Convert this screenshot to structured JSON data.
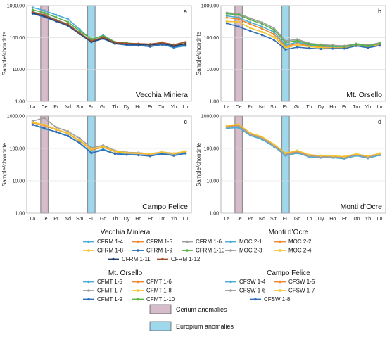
{
  "colors": {
    "cerium_band": "#d7bccb",
    "europium_band": "#9fd8ec",
    "band_stroke": "#333333",
    "grid": "#d9d9d9",
    "axis": "#888888"
  },
  "chart_data": [
    {
      "type": "line",
      "id": "a",
      "letter": "a",
      "title": "Vecchia Miniera",
      "ylabel": "Sample/chondrite",
      "ylim": [
        1,
        1000
      ],
      "yscale": "log",
      "ytick_labels": [
        "1000.00",
        "100.00",
        "10.00",
        "1.00"
      ],
      "categories": [
        "La",
        "Ce",
        "Pr",
        "Nd",
        "Sm",
        "Eu",
        "Gd",
        "Tb",
        "Dy",
        "Ho",
        "Er",
        "Tm",
        "Yb",
        "Lu"
      ],
      "bands": [
        {
          "label": "Cerium anomalies",
          "category": "Ce",
          "color": "#d7bccb"
        },
        {
          "label": "Europium anomalies",
          "category": "Eu",
          "color": "#9fd8ec"
        }
      ],
      "series": [
        {
          "name": "CFRM 1-4",
          "color": "#4bacd6",
          "values": [
            870,
            700,
            510,
            380,
            180,
            85,
            118,
            72,
            62,
            58,
            52,
            62,
            48,
            55
          ]
        },
        {
          "name": "CFRM 1-5",
          "color": "#f08a2e",
          "values": [
            600,
            480,
            340,
            250,
            135,
            75,
            98,
            68,
            64,
            62,
            60,
            66,
            56,
            64
          ]
        },
        {
          "name": "CFRM 1-6",
          "color": "#9e9e9e",
          "values": [
            640,
            520,
            360,
            265,
            140,
            78,
            104,
            70,
            66,
            63,
            61,
            68,
            58,
            66
          ]
        },
        {
          "name": "CFRM 1-8",
          "color": "#f4c430",
          "values": [
            610,
            495,
            345,
            255,
            137,
            76,
            100,
            69,
            64,
            62,
            60,
            67,
            57,
            65
          ]
        },
        {
          "name": "CFRM 1-9",
          "color": "#2f6fb8",
          "values": [
            560,
            440,
            320,
            232,
            128,
            72,
            92,
            64,
            58,
            56,
            52,
            60,
            50,
            58
          ]
        },
        {
          "name": "CFRM 1-10",
          "color": "#5ab345",
          "values": [
            740,
            590,
            430,
            310,
            160,
            90,
            112,
            73,
            67,
            63,
            59,
            67,
            55,
            63
          ]
        },
        {
          "name": "CFRM 1-11",
          "color": "#1f3f6e",
          "values": [
            590,
            470,
            335,
            246,
            133,
            74,
            96,
            67,
            63,
            61,
            58,
            65,
            55,
            63
          ]
        },
        {
          "name": "CFRM 1-12",
          "color": "#a0522d",
          "values": [
            620,
            500,
            350,
            258,
            138,
            78,
            102,
            70,
            66,
            64,
            62,
            70,
            60,
            72
          ]
        }
      ]
    },
    {
      "type": "line",
      "id": "b",
      "letter": "b",
      "title": "Mt. Orsello",
      "ylabel": "Sample/chondrite",
      "ylim": [
        1,
        1000
      ],
      "yscale": "log",
      "ytick_labels": [
        "1000.00",
        "100.00",
        "10.00",
        "1.00"
      ],
      "categories": [
        "La",
        "Ce",
        "Pr",
        "Nd",
        "Sm",
        "Eu",
        "Gd",
        "Tb",
        "Dy",
        "Ho",
        "Er",
        "Tm",
        "Yb",
        "Lu"
      ],
      "bands": [
        {
          "label": "Cerium anomalies",
          "category": "Ce",
          "color": "#d7bccb"
        },
        {
          "label": "Europium anomalies",
          "category": "Eu",
          "color": "#9fd8ec"
        }
      ],
      "series": [
        {
          "name": "CFMT 1-5",
          "color": "#4bacd6",
          "values": [
            480,
            420,
            300,
            220,
            150,
            58,
            72,
            58,
            52,
            50,
            48,
            58,
            52,
            62
          ]
        },
        {
          "name": "CFMT 1-6",
          "color": "#f08a2e",
          "values": [
            420,
            380,
            260,
            190,
            128,
            52,
            65,
            54,
            50,
            48,
            47,
            56,
            50,
            60
          ]
        },
        {
          "name": "CFMT 1-7",
          "color": "#9e9e9e",
          "values": [
            600,
            560,
            400,
            300,
            200,
            78,
            88,
            66,
            60,
            57,
            55,
            64,
            58,
            68
          ]
        },
        {
          "name": "CFMT 1-8",
          "color": "#f4c430",
          "values": [
            320,
            310,
            200,
            150,
            105,
            48,
            58,
            52,
            48,
            47,
            46,
            55,
            50,
            58
          ]
        },
        {
          "name": "CFMT 1-9",
          "color": "#2f6fb8",
          "values": [
            280,
            220,
            160,
            120,
            85,
            42,
            50,
            46,
            44,
            45,
            45,
            55,
            48,
            56
          ]
        },
        {
          "name": "CFMT 1-10",
          "color": "#5ab345",
          "values": [
            560,
            520,
            360,
            270,
            175,
            70,
            80,
            62,
            56,
            54,
            52,
            62,
            55,
            66
          ]
        }
      ]
    },
    {
      "type": "line",
      "id": "c",
      "letter": "c",
      "title": "Campo Felice",
      "ylabel": "Sample/chondrite",
      "ylim": [
        1,
        1000
      ],
      "yscale": "log",
      "ytick_labels": [
        "1000.00",
        "100.00",
        "10.00",
        "1.00"
      ],
      "categories": [
        "La",
        "Ce",
        "Pr",
        "Nd",
        "Sm",
        "Eu",
        "Gd",
        "Tb",
        "Dy",
        "Ho",
        "Er",
        "Tm",
        "Yb",
        "Lu"
      ],
      "bands": [
        {
          "label": "Cerium anomalies",
          "category": "Ce",
          "color": "#d7bccb"
        },
        {
          "label": "Europium anomalies",
          "category": "Eu",
          "color": "#9fd8ec"
        }
      ],
      "series": [
        {
          "name": "CFSW 1-4",
          "color": "#4bacd6",
          "values": [
            560,
            400,
            330,
            250,
            150,
            75,
            95,
            70,
            66,
            64,
            60,
            70,
            62,
            72
          ]
        },
        {
          "name": "CFSW 1-5",
          "color": "#f08a2e",
          "values": [
            620,
            520,
            380,
            290,
            170,
            90,
            110,
            80,
            72,
            70,
            66,
            76,
            68,
            78
          ]
        },
        {
          "name": "CFSW 1-6",
          "color": "#9e9e9e",
          "values": [
            700,
            880,
            450,
            340,
            205,
            105,
            125,
            86,
            76,
            74,
            68,
            78,
            70,
            80
          ]
        },
        {
          "name": "CFSW 1-7",
          "color": "#f4c430",
          "values": [
            640,
            540,
            390,
            300,
            178,
            95,
            115,
            82,
            74,
            72,
            68,
            78,
            70,
            82
          ]
        },
        {
          "name": "CFSW 1-8",
          "color": "#2f6fb8",
          "values": [
            540,
            420,
            320,
            240,
            145,
            72,
            90,
            68,
            64,
            62,
            58,
            68,
            60,
            70
          ]
        }
      ]
    },
    {
      "type": "line",
      "id": "d",
      "letter": "d",
      "title": "Monti d’Ocre",
      "ylabel": "Sample/chondrite",
      "ylim": [
        1,
        1000
      ],
      "yscale": "log",
      "ytick_labels": [
        "1000.00",
        "100.00",
        "10.00",
        "1.00"
      ],
      "categories": [
        "La",
        "Ce",
        "Pr",
        "Nd",
        "Sm",
        "Eu",
        "Gd",
        "Tb",
        "Dy",
        "Ho",
        "Er",
        "Tm",
        "Yb",
        "Lu"
      ],
      "bands": [
        {
          "label": "Cerium anomalies",
          "category": "Ce",
          "color": "#d7bccb"
        },
        {
          "label": "Europium anomalies",
          "category": "Eu",
          "color": "#9fd8ec"
        }
      ],
      "series": [
        {
          "name": "MOC 2-1",
          "color": "#4bacd6",
          "values": [
            420,
            440,
            250,
            190,
            115,
            60,
            72,
            55,
            52,
            52,
            48,
            60,
            50,
            62
          ]
        },
        {
          "name": "MOC 2-2",
          "color": "#f08a2e",
          "values": [
            480,
            530,
            290,
            220,
            130,
            68,
            82,
            62,
            58,
            57,
            54,
            66,
            56,
            68
          ]
        },
        {
          "name": "MOC 2-3",
          "color": "#9e9e9e",
          "values": [
            450,
            490,
            270,
            205,
            122,
            64,
            76,
            58,
            55,
            55,
            51,
            63,
            53,
            65
          ]
        },
        {
          "name": "MOC 2-4",
          "color": "#f4c430",
          "values": [
            500,
            560,
            300,
            230,
            135,
            72,
            86,
            64,
            60,
            59,
            56,
            68,
            58,
            70
          ]
        }
      ]
    }
  ],
  "legend": {
    "groups": [
      {
        "title": "Vecchia Miniera",
        "panel": 0
      },
      {
        "title": "Monti d’Ocre",
        "panel": 3
      },
      {
        "title": "Mt. Orsello",
        "panel": 1
      },
      {
        "title": "Campo Felice",
        "panel": 2
      }
    ],
    "bands": [
      {
        "label": "Cerium anomalies",
        "color": "#d7bccb"
      },
      {
        "label": "Europium anomalies",
        "color": "#9fd8ec"
      }
    ]
  }
}
